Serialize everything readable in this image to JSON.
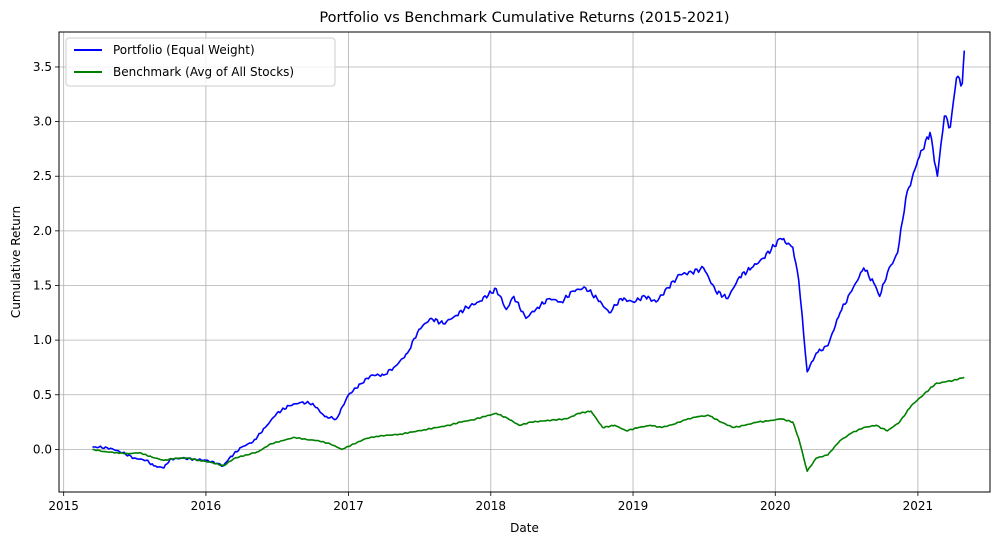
{
  "chart_data": {
    "type": "line",
    "title": "Portfolio vs Benchmark Cumulative Returns (2015-2021)",
    "xlabel": "Date",
    "ylabel": "Cumulative Return",
    "x_axis_type": "date",
    "xlim": [
      "2014-12-20",
      "2021-07-05"
    ],
    "ylim": [
      -0.39,
      3.82
    ],
    "x_ticks": [
      "2015",
      "2016",
      "2017",
      "2018",
      "2019",
      "2020",
      "2021"
    ],
    "y_ticks": [
      0.0,
      0.5,
      1.0,
      1.5,
      2.0,
      2.5,
      3.0,
      3.5
    ],
    "y_tick_labels": [
      "0.0",
      "0.5",
      "1.0",
      "1.5",
      "2.0",
      "2.5",
      "3.0",
      "3.5"
    ],
    "grid": true,
    "legend_position": "top-left",
    "series": [
      {
        "name": "Portfolio (Equal Weight)",
        "color": "#0000ff",
        "points": [
          [
            "2015-03-16",
            0.02
          ],
          [
            "2015-04-01",
            0.02
          ],
          [
            "2015-05-01",
            0.01
          ],
          [
            "2015-06-01",
            -0.03
          ],
          [
            "2015-07-01",
            -0.08
          ],
          [
            "2015-08-01",
            -0.1
          ],
          [
            "2015-08-20",
            -0.15
          ],
          [
            "2015-09-15",
            -0.17
          ],
          [
            "2015-10-01",
            -0.09
          ],
          [
            "2015-11-01",
            -0.08
          ],
          [
            "2015-12-01",
            -0.09
          ],
          [
            "2016-01-01",
            -0.1
          ],
          [
            "2016-02-01",
            -0.13
          ],
          [
            "2016-02-15",
            -0.15
          ],
          [
            "2016-03-01",
            -0.08
          ],
          [
            "2016-04-01",
            0.02
          ],
          [
            "2016-05-01",
            0.07
          ],
          [
            "2016-06-01",
            0.2
          ],
          [
            "2016-07-01",
            0.33
          ],
          [
            "2016-08-01",
            0.4
          ],
          [
            "2016-09-01",
            0.43
          ],
          [
            "2016-10-01",
            0.42
          ],
          [
            "2016-11-01",
            0.3
          ],
          [
            "2016-12-01",
            0.28
          ],
          [
            "2017-01-01",
            0.5
          ],
          [
            "2017-02-01",
            0.6
          ],
          [
            "2017-03-01",
            0.68
          ],
          [
            "2017-04-01",
            0.68
          ],
          [
            "2017-05-01",
            0.76
          ],
          [
            "2017-06-01",
            0.88
          ],
          [
            "2017-07-01",
            1.1
          ],
          [
            "2017-08-01",
            1.2
          ],
          [
            "2017-09-01",
            1.15
          ],
          [
            "2017-10-01",
            1.22
          ],
          [
            "2017-11-01",
            1.3
          ],
          [
            "2017-12-01",
            1.35
          ],
          [
            "2018-01-15",
            1.47
          ],
          [
            "2018-02-10",
            1.28
          ],
          [
            "2018-03-01",
            1.4
          ],
          [
            "2018-04-01",
            1.2
          ],
          [
            "2018-05-01",
            1.3
          ],
          [
            "2018-06-01",
            1.38
          ],
          [
            "2018-07-01",
            1.35
          ],
          [
            "2018-08-01",
            1.45
          ],
          [
            "2018-09-01",
            1.48
          ],
          [
            "2018-10-01",
            1.38
          ],
          [
            "2018-11-01",
            1.25
          ],
          [
            "2018-12-01",
            1.38
          ],
          [
            "2019-01-01",
            1.35
          ],
          [
            "2019-02-01",
            1.4
          ],
          [
            "2019-03-01",
            1.35
          ],
          [
            "2019-04-01",
            1.48
          ],
          [
            "2019-05-01",
            1.6
          ],
          [
            "2019-06-01",
            1.62
          ],
          [
            "2019-07-01",
            1.66
          ],
          [
            "2019-08-01",
            1.45
          ],
          [
            "2019-09-01",
            1.38
          ],
          [
            "2019-10-01",
            1.58
          ],
          [
            "2019-11-01",
            1.66
          ],
          [
            "2019-12-01",
            1.75
          ],
          [
            "2020-01-15",
            1.93
          ],
          [
            "2020-02-15",
            1.85
          ],
          [
            "2020-03-01",
            1.55
          ],
          [
            "2020-03-23",
            0.71
          ],
          [
            "2020-04-15",
            0.88
          ],
          [
            "2020-05-15",
            0.95
          ],
          [
            "2020-06-15",
            1.25
          ],
          [
            "2020-07-15",
            1.45
          ],
          [
            "2020-08-15",
            1.66
          ],
          [
            "2020-09-10",
            1.52
          ],
          [
            "2020-09-25",
            1.4
          ],
          [
            "2020-10-15",
            1.62
          ],
          [
            "2020-11-10",
            1.8
          ],
          [
            "2020-12-01",
            2.3
          ],
          [
            "2021-01-01",
            2.65
          ],
          [
            "2021-02-01",
            2.9
          ],
          [
            "2021-02-20",
            2.5
          ],
          [
            "2021-03-10",
            3.05
          ],
          [
            "2021-03-25",
            2.95
          ],
          [
            "2021-04-10",
            3.4
          ],
          [
            "2021-04-25",
            3.35
          ],
          [
            "2021-04-30",
            3.65
          ]
        ]
      },
      {
        "name": "Benchmark (Avg of All Stocks)",
        "color": "#008000",
        "points": [
          [
            "2015-03-16",
            0.0
          ],
          [
            "2015-04-15",
            -0.02
          ],
          [
            "2015-05-15",
            -0.03
          ],
          [
            "2015-06-15",
            -0.04
          ],
          [
            "2015-07-15",
            -0.03
          ],
          [
            "2015-08-15",
            -0.07
          ],
          [
            "2015-09-15",
            -0.1
          ],
          [
            "2015-10-15",
            -0.08
          ],
          [
            "2015-11-15",
            -0.08
          ],
          [
            "2015-12-15",
            -0.1
          ],
          [
            "2016-01-15",
            -0.12
          ],
          [
            "2016-02-15",
            -0.15
          ],
          [
            "2016-03-15",
            -0.08
          ],
          [
            "2016-04-15",
            -0.05
          ],
          [
            "2016-05-15",
            -0.02
          ],
          [
            "2016-06-15",
            0.05
          ],
          [
            "2016-07-15",
            0.08
          ],
          [
            "2016-08-15",
            0.11
          ],
          [
            "2016-09-15",
            0.09
          ],
          [
            "2016-10-15",
            0.08
          ],
          [
            "2016-11-15",
            0.05
          ],
          [
            "2016-12-15",
            0.0
          ],
          [
            "2017-01-15",
            0.05
          ],
          [
            "2017-02-15",
            0.1
          ],
          [
            "2017-03-15",
            0.12
          ],
          [
            "2017-04-15",
            0.13
          ],
          [
            "2017-05-15",
            0.14
          ],
          [
            "2017-06-15",
            0.16
          ],
          [
            "2017-07-15",
            0.18
          ],
          [
            "2017-08-15",
            0.2
          ],
          [
            "2017-09-15",
            0.22
          ],
          [
            "2017-10-15",
            0.25
          ],
          [
            "2017-11-15",
            0.27
          ],
          [
            "2017-12-15",
            0.3
          ],
          [
            "2018-01-15",
            0.33
          ],
          [
            "2018-02-15",
            0.28
          ],
          [
            "2018-03-15",
            0.22
          ],
          [
            "2018-04-15",
            0.25
          ],
          [
            "2018-05-15",
            0.26
          ],
          [
            "2018-06-15",
            0.27
          ],
          [
            "2018-07-15",
            0.28
          ],
          [
            "2018-08-15",
            0.33
          ],
          [
            "2018-09-15",
            0.35
          ],
          [
            "2018-10-15",
            0.2
          ],
          [
            "2018-11-15",
            0.22
          ],
          [
            "2018-12-15",
            0.17
          ],
          [
            "2019-01-15",
            0.2
          ],
          [
            "2019-02-15",
            0.22
          ],
          [
            "2019-03-15",
            0.2
          ],
          [
            "2019-04-15",
            0.23
          ],
          [
            "2019-05-15",
            0.27
          ],
          [
            "2019-06-15",
            0.3
          ],
          [
            "2019-07-15",
            0.31
          ],
          [
            "2019-08-15",
            0.25
          ],
          [
            "2019-09-15",
            0.2
          ],
          [
            "2019-10-15",
            0.22
          ],
          [
            "2019-11-15",
            0.25
          ],
          [
            "2019-12-15",
            0.26
          ],
          [
            "2020-01-15",
            0.28
          ],
          [
            "2020-02-15",
            0.25
          ],
          [
            "2020-03-01",
            0.1
          ],
          [
            "2020-03-23",
            -0.2
          ],
          [
            "2020-04-15",
            -0.08
          ],
          [
            "2020-05-15",
            -0.05
          ],
          [
            "2020-06-15",
            0.08
          ],
          [
            "2020-07-15",
            0.15
          ],
          [
            "2020-08-15",
            0.2
          ],
          [
            "2020-09-15",
            0.22
          ],
          [
            "2020-10-15",
            0.17
          ],
          [
            "2020-11-15",
            0.25
          ],
          [
            "2020-12-15",
            0.4
          ],
          [
            "2021-01-15",
            0.5
          ],
          [
            "2021-02-15",
            0.6
          ],
          [
            "2021-03-15",
            0.62
          ],
          [
            "2021-04-01",
            0.63
          ],
          [
            "2021-04-30",
            0.66
          ]
        ]
      }
    ]
  }
}
